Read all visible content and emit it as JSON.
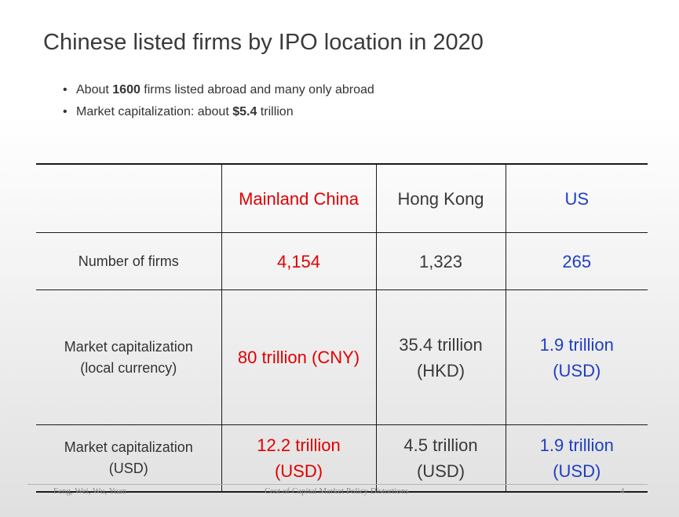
{
  "slide": {
    "title": "Chinese listed firms by IPO location in 2020",
    "bullets": [
      {
        "pre": "About ",
        "bold": "1600",
        "post": "  firms listed abroad and many only abroad"
      },
      {
        "pre": "Market capitalization: about ",
        "bold": "$5.4",
        "post": " trillion"
      }
    ]
  },
  "table": {
    "columns": [
      "",
      "Mainland China",
      "Hong Kong",
      "US"
    ],
    "rows": [
      {
        "label": "Number of firms",
        "cells": [
          "4,154",
          "1,323",
          "265"
        ]
      },
      {
        "label": [
          "Market capitalization",
          "(local currency)"
        ],
        "cells": [
          [
            "80 trillion (CNY)"
          ],
          [
            "35.4 trillion",
            "(HKD)"
          ],
          [
            "1.9 trillion",
            "(USD)"
          ]
        ]
      },
      {
        "label": [
          "Market capitalization",
          "(USD)"
        ],
        "cells": [
          [
            "12.2 trillion",
            "(USD)"
          ],
          [
            "4.5 trillion",
            "(USD)"
          ],
          [
            "1.9 trillion",
            "(USD)"
          ]
        ]
      }
    ]
  },
  "footer": {
    "authors": "Feng, Wei, Wu, Yuan",
    "talk_title": "Cost of Capital Market Policy Distortions",
    "page_number": "4"
  },
  "colors": {
    "mainland": "#e00000",
    "hongkong": "#3a3a3a",
    "us": "#1f3fc0"
  }
}
